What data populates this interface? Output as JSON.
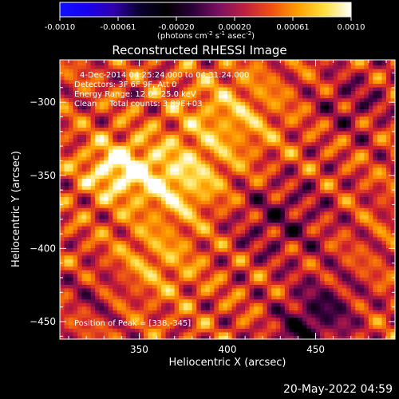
{
  "colorbar": {
    "stops": [
      "#1010ff",
      "#1800f0",
      "#3000b0",
      "#0a0030",
      "#000000",
      "#2a0038",
      "#7a1060",
      "#c02040",
      "#f05010",
      "#ffa000",
      "#ffe040",
      "#ffffff"
    ],
    "ticks": [
      "-0.0010",
      "-0.00061",
      "-0.00020",
      "0.00020",
      "0.00061",
      "0.0010"
    ],
    "unit_main": "(photons cm",
    "unit_exp1": "-2",
    "unit_mid": " s",
    "unit_exp2": "-1",
    "unit_tail": " asec",
    "unit_exp3": "-2",
    "unit_close": ")"
  },
  "chart_data": {
    "type": "heatmap",
    "title": "Reconstructed RHESSI Image",
    "xlabel": "Heliocentric X (arcsec)",
    "ylabel": "Heliocentric Y (arcsec)",
    "xlim": [
      305,
      495
    ],
    "ylim": [
      -462,
      -271
    ],
    "x_ticks": [
      350,
      400,
      450
    ],
    "y_ticks": [
      -300,
      -350,
      -400,
      -450
    ],
    "annotations": [
      "4-Dec-2014 04:25:24.000 to 04:31:24.000",
      "Detectors: 3F 6F 9F, Att 0",
      "Energy Range: 12.0 - 25.0 keV",
      "Clean     Total counts: 3.89E+03"
    ],
    "peak_label": "Position of Peak = [338,-345]",
    "peak": [
      338,
      -345
    ],
    "colormap": [
      "#000000",
      "#3a0040",
      "#8a1050",
      "#d02030",
      "#f06010",
      "#ffa000",
      "#ffe050",
      "#ffffff"
    ]
  },
  "footer": {
    "date": "20-May-2022 04:59"
  }
}
